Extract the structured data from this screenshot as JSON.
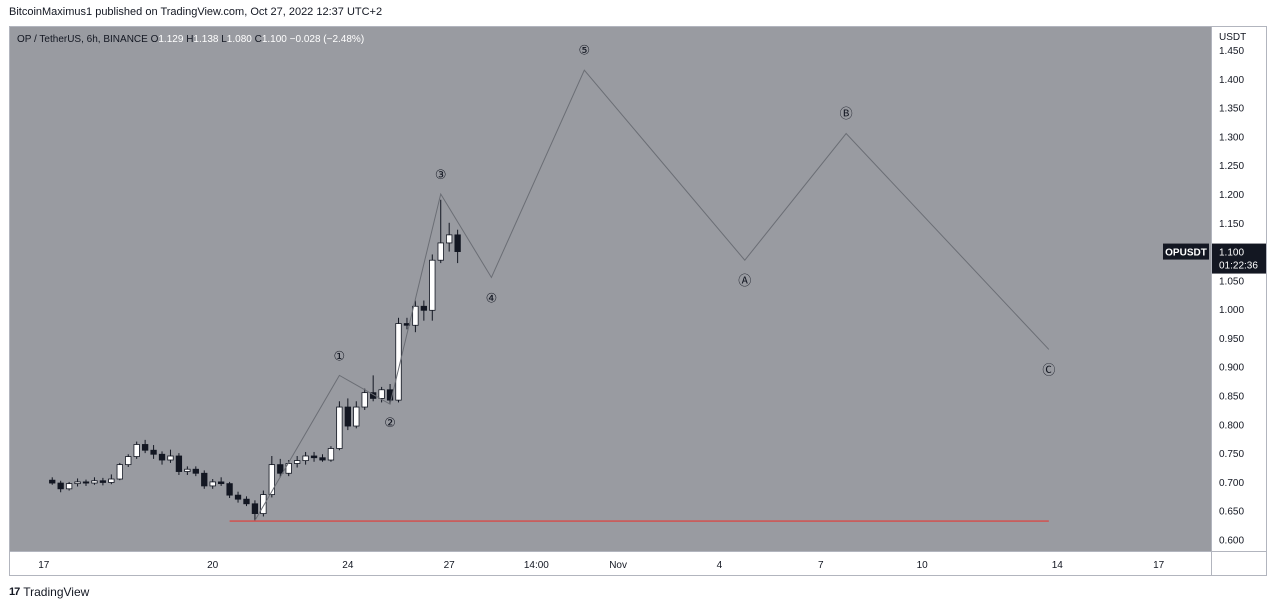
{
  "header": {
    "publish_line": "BitcoinMaximus1 published on TradingView.com, Oct 27, 2022 12:37 UTC+2"
  },
  "footer": {
    "logo_glyph": "17",
    "brand": "TradingView"
  },
  "colors": {
    "background": "#999ba1",
    "panel": "#ffffff",
    "up_candle": "#ffffff",
    "down_candle": "#131722",
    "wave_line": "#6b6e75",
    "support_line": "#e53935",
    "price_tag_bg": "#131722"
  },
  "chart_data": {
    "type": "candlestick",
    "symbol_info": {
      "pair": "OP / TetherUS",
      "interval": "6h",
      "exchange": "BINANCE",
      "open_label": "O",
      "open": "1.129",
      "high_label": "H",
      "high": "1.138",
      "low_label": "L",
      "low": "1.080",
      "close_label": "C",
      "close": "1.100",
      "change": "−0.028 (−2.48%)"
    },
    "y_axis": {
      "unit": "USDT",
      "range": [
        0.58,
        1.49
      ],
      "ticks": [
        "1.450",
        "1.400",
        "1.350",
        "1.300",
        "1.250",
        "1.200",
        "1.150",
        "1.100",
        "1.050",
        "1.000",
        "0.950",
        "0.900",
        "0.850",
        "0.800",
        "0.750",
        "0.700",
        "0.650",
        "0.600"
      ]
    },
    "x_axis": {
      "ticks": [
        {
          "label": "17",
          "x": 15.0
        },
        {
          "label": "20",
          "x": 20.0
        },
        {
          "label": "24",
          "x": 24.0
        },
        {
          "label": "27",
          "x": 27.0
        },
        {
          "label": "14:00",
          "x": 29.58
        },
        {
          "label": "Nov",
          "x": 32.0
        },
        {
          "label": "4",
          "x": 35.0
        },
        {
          "label": "7",
          "x": 38.0
        },
        {
          "label": "10",
          "x": 41.0
        },
        {
          "label": "14",
          "x": 45.0
        },
        {
          "label": "17",
          "x": 48.0
        }
      ]
    },
    "price_tag": {
      "label": "OPUSDT",
      "value": "1.100",
      "countdown": "01:22:36"
    },
    "candles": [
      {
        "x": 15.25,
        "o": 0.703,
        "h": 0.708,
        "l": 0.695,
        "c": 0.698
      },
      {
        "x": 15.5,
        "o": 0.698,
        "h": 0.702,
        "l": 0.682,
        "c": 0.688
      },
      {
        "x": 15.75,
        "o": 0.688,
        "h": 0.7,
        "l": 0.685,
        "c": 0.697
      },
      {
        "x": 16.0,
        "o": 0.697,
        "h": 0.706,
        "l": 0.692,
        "c": 0.7
      },
      {
        "x": 16.25,
        "o": 0.7,
        "h": 0.704,
        "l": 0.693,
        "c": 0.698
      },
      {
        "x": 16.5,
        "o": 0.698,
        "h": 0.708,
        "l": 0.695,
        "c": 0.702
      },
      {
        "x": 16.75,
        "o": 0.702,
        "h": 0.707,
        "l": 0.694,
        "c": 0.699
      },
      {
        "x": 17.0,
        "o": 0.699,
        "h": 0.713,
        "l": 0.696,
        "c": 0.705
      },
      {
        "x": 17.25,
        "o": 0.705,
        "h": 0.733,
        "l": 0.703,
        "c": 0.73
      },
      {
        "x": 17.5,
        "o": 0.73,
        "h": 0.748,
        "l": 0.726,
        "c": 0.744
      },
      {
        "x": 17.75,
        "o": 0.744,
        "h": 0.77,
        "l": 0.74,
        "c": 0.765
      },
      {
        "x": 18.0,
        "o": 0.765,
        "h": 0.773,
        "l": 0.75,
        "c": 0.755
      },
      {
        "x": 18.25,
        "o": 0.755,
        "h": 0.764,
        "l": 0.74,
        "c": 0.748
      },
      {
        "x": 18.5,
        "o": 0.748,
        "h": 0.753,
        "l": 0.73,
        "c": 0.738
      },
      {
        "x": 18.75,
        "o": 0.738,
        "h": 0.756,
        "l": 0.733,
        "c": 0.745
      },
      {
        "x": 19.0,
        "o": 0.745,
        "h": 0.75,
        "l": 0.712,
        "c": 0.718
      },
      {
        "x": 19.25,
        "o": 0.718,
        "h": 0.727,
        "l": 0.712,
        "c": 0.722
      },
      {
        "x": 19.5,
        "o": 0.722,
        "h": 0.727,
        "l": 0.71,
        "c": 0.715
      },
      {
        "x": 19.75,
        "o": 0.715,
        "h": 0.72,
        "l": 0.688,
        "c": 0.693
      },
      {
        "x": 20.0,
        "o": 0.693,
        "h": 0.705,
        "l": 0.688,
        "c": 0.7
      },
      {
        "x": 20.25,
        "o": 0.7,
        "h": 0.708,
        "l": 0.693,
        "c": 0.697
      },
      {
        "x": 20.5,
        "o": 0.697,
        "h": 0.7,
        "l": 0.672,
        "c": 0.677
      },
      {
        "x": 20.75,
        "o": 0.677,
        "h": 0.683,
        "l": 0.664,
        "c": 0.67
      },
      {
        "x": 21.0,
        "o": 0.67,
        "h": 0.675,
        "l": 0.658,
        "c": 0.662
      },
      {
        "x": 21.25,
        "o": 0.662,
        "h": 0.668,
        "l": 0.633,
        "c": 0.645
      },
      {
        "x": 21.5,
        "o": 0.645,
        "h": 0.685,
        "l": 0.64,
        "c": 0.678
      },
      {
        "x": 21.75,
        "o": 0.678,
        "h": 0.745,
        "l": 0.673,
        "c": 0.73
      },
      {
        "x": 22.0,
        "o": 0.73,
        "h": 0.74,
        "l": 0.708,
        "c": 0.715
      },
      {
        "x": 22.25,
        "o": 0.715,
        "h": 0.738,
        "l": 0.71,
        "c": 0.732
      },
      {
        "x": 22.5,
        "o": 0.732,
        "h": 0.745,
        "l": 0.725,
        "c": 0.737
      },
      {
        "x": 22.75,
        "o": 0.737,
        "h": 0.752,
        "l": 0.73,
        "c": 0.745
      },
      {
        "x": 23.0,
        "o": 0.745,
        "h": 0.752,
        "l": 0.735,
        "c": 0.742
      },
      {
        "x": 23.25,
        "o": 0.742,
        "h": 0.748,
        "l": 0.735,
        "c": 0.738
      },
      {
        "x": 23.5,
        "o": 0.738,
        "h": 0.762,
        "l": 0.735,
        "c": 0.758
      },
      {
        "x": 23.75,
        "o": 0.758,
        "h": 0.84,
        "l": 0.755,
        "c": 0.83
      },
      {
        "x": 24.0,
        "o": 0.83,
        "h": 0.845,
        "l": 0.79,
        "c": 0.797
      },
      {
        "x": 24.25,
        "o": 0.797,
        "h": 0.84,
        "l": 0.793,
        "c": 0.83
      },
      {
        "x": 24.5,
        "o": 0.83,
        "h": 0.862,
        "l": 0.825,
        "c": 0.855
      },
      {
        "x": 24.75,
        "o": 0.855,
        "h": 0.885,
        "l": 0.84,
        "c": 0.845
      },
      {
        "x": 25.0,
        "o": 0.845,
        "h": 0.865,
        "l": 0.838,
        "c": 0.86
      },
      {
        "x": 25.25,
        "o": 0.86,
        "h": 0.87,
        "l": 0.835,
        "c": 0.842
      },
      {
        "x": 25.5,
        "o": 0.842,
        "h": 0.985,
        "l": 0.838,
        "c": 0.975
      },
      {
        "x": 25.75,
        "o": 0.975,
        "h": 0.985,
        "l": 0.965,
        "c": 0.972
      },
      {
        "x": 26.0,
        "o": 0.972,
        "h": 1.015,
        "l": 0.96,
        "c": 1.005
      },
      {
        "x": 26.25,
        "o": 1.005,
        "h": 1.015,
        "l": 0.98,
        "c": 0.998
      },
      {
        "x": 26.5,
        "o": 0.998,
        "h": 1.095,
        "l": 0.98,
        "c": 1.085
      },
      {
        "x": 26.75,
        "o": 1.085,
        "h": 1.19,
        "l": 1.08,
        "c": 1.115
      },
      {
        "x": 27.0,
        "o": 1.115,
        "h": 1.15,
        "l": 1.1,
        "c": 1.129
      },
      {
        "x": 27.25,
        "o": 1.129,
        "h": 1.138,
        "l": 1.08,
        "c": 1.1
      }
    ],
    "wave_path": [
      {
        "x": 21.25,
        "y": 0.633
      },
      {
        "x": 23.75,
        "y": 0.885
      },
      {
        "x": 25.25,
        "y": 0.835
      },
      {
        "x": 26.75,
        "y": 1.2
      },
      {
        "x": 28.25,
        "y": 1.055
      },
      {
        "x": 31.0,
        "y": 1.415
      },
      {
        "x": 35.75,
        "y": 1.085
      },
      {
        "x": 38.75,
        "y": 1.305
      },
      {
        "x": 44.75,
        "y": 0.93
      }
    ],
    "wave_labels": [
      {
        "text": "①",
        "x": 23.75,
        "y": 0.917
      },
      {
        "text": "②",
        "x": 25.25,
        "y": 0.801
      },
      {
        "text": "③",
        "x": 26.75,
        "y": 1.232
      },
      {
        "x": 28.25,
        "y": 1.018,
        "text": "④"
      },
      {
        "text": "⑤",
        "x": 31.0,
        "y": 1.448
      },
      {
        "text": "Ⓐ",
        "x": 35.75,
        "y": 1.048
      },
      {
        "text": "Ⓑ",
        "x": 38.75,
        "y": 1.338
      },
      {
        "text": "Ⓒ",
        "x": 44.75,
        "y": 0.893
      }
    ],
    "support_line": {
      "x1": 20.5,
      "x2": 44.75,
      "y": 0.632
    }
  }
}
